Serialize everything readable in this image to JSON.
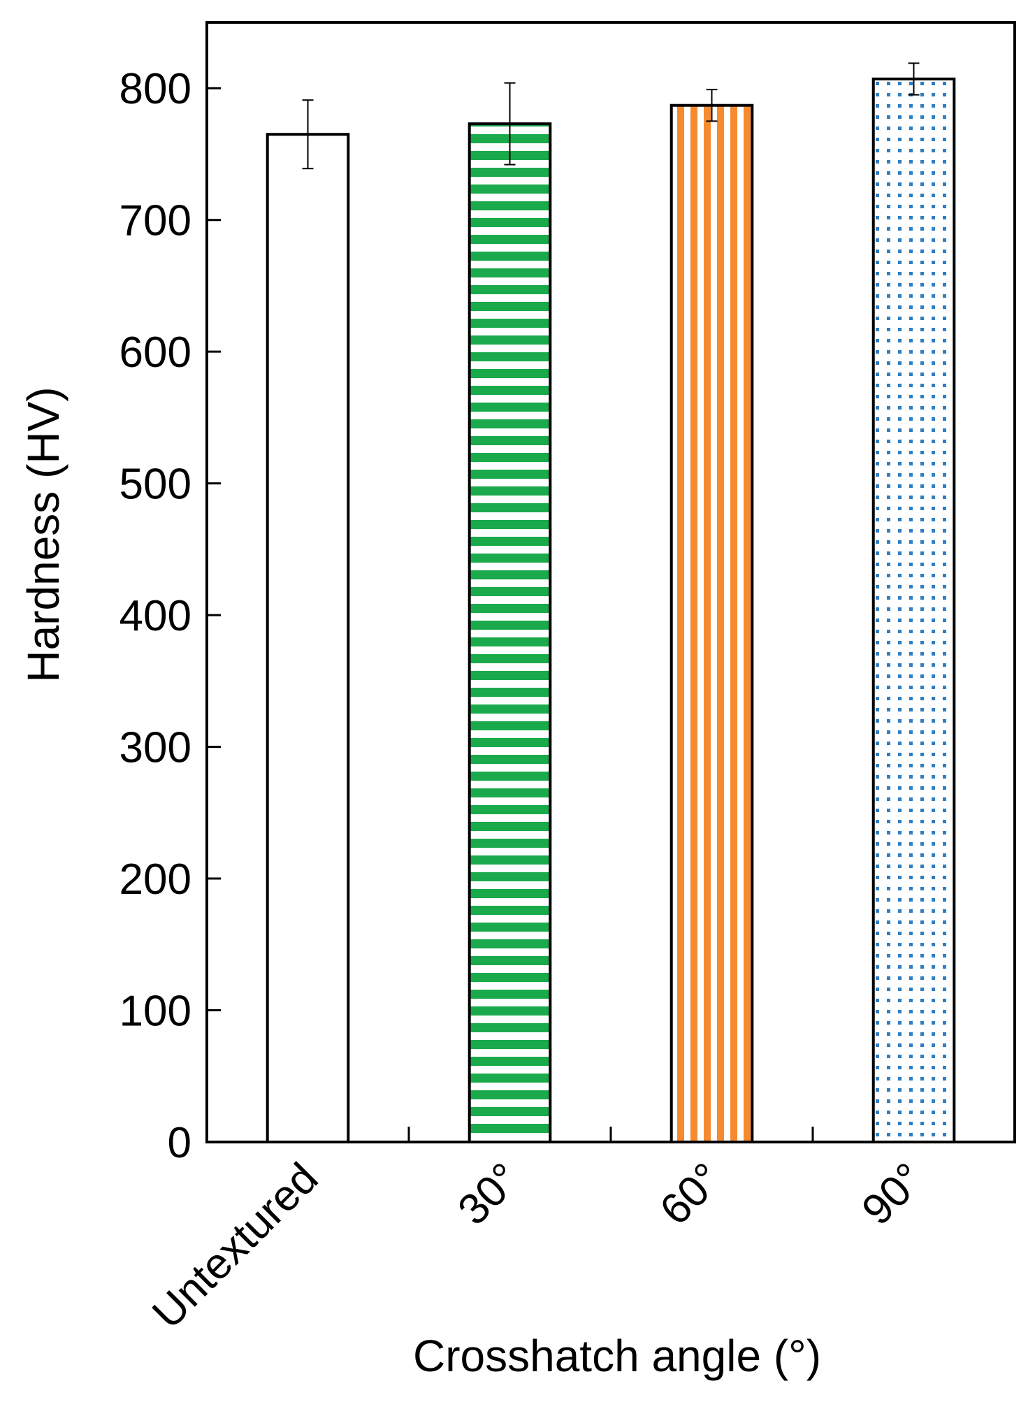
{
  "chart_data": {
    "type": "bar",
    "title": "",
    "xlabel": "Crosshatch angle (°)",
    "ylabel": "Hardness (HV)",
    "ylim": [
      0,
      850
    ],
    "yticks": [
      0,
      100,
      200,
      300,
      400,
      500,
      600,
      700,
      800
    ],
    "categories": [
      "Untextured",
      "30°",
      "60°",
      "90°"
    ],
    "values": [
      765,
      773,
      787,
      807
    ],
    "error": [
      26,
      31,
      12,
      12
    ],
    "bar_fills": [
      {
        "pattern": "none",
        "color": "#ffffff"
      },
      {
        "pattern": "horizontal-stripes",
        "color": "#1aaa4b"
      },
      {
        "pattern": "vertical-stripes",
        "color": "#f58a2e"
      },
      {
        "pattern": "dots",
        "color": "#2e7ec4"
      }
    ],
    "grid": false,
    "legend": "none"
  }
}
